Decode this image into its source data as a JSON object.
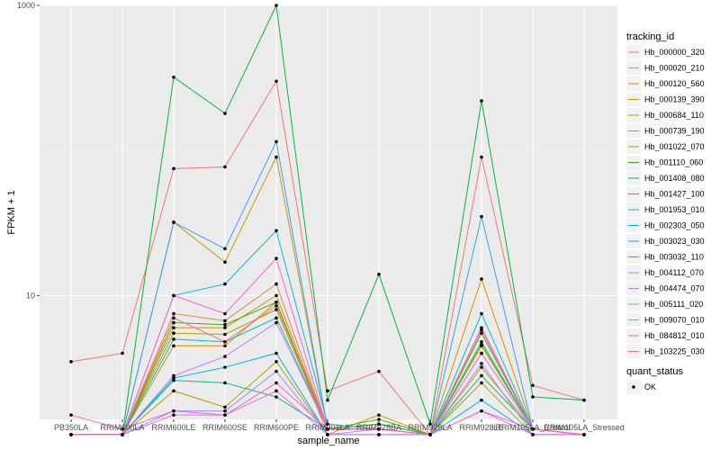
{
  "chart_data": {
    "type": "line",
    "xlabel": "sample_name",
    "ylabel": "FPKM + 1",
    "y_scale": "log10",
    "ylim": [
      1.4,
      1000
    ],
    "y_ticks": [
      {
        "value": 10,
        "label": "10"
      },
      {
        "value": 1000,
        "label": "1000"
      }
    ],
    "categories": [
      "PB350LA",
      "RRIM600LA",
      "RRIM600LE",
      "RRIM600SE",
      "RRIM600PE",
      "RRIM901LA",
      "RRIM928BA",
      "RRIM928LA",
      "RRIM928LE",
      "RRIM105LA_Control",
      "RRIM105LA_Stressed"
    ],
    "grid": true,
    "legend_title": "tracking_id",
    "legend_position": "right",
    "shape_legend": {
      "title": "quant_status",
      "items": [
        {
          "label": "OK"
        }
      ]
    },
    "series": [
      {
        "name": "Hb_000000_320",
        "color": "#F8766D",
        "values": [
          3.5,
          4.0,
          75,
          77,
          300,
          2.2,
          3.0,
          1.1,
          90,
          2.4,
          1.9
        ]
      },
      {
        "name": "Hb_000020_210",
        "color": "#F07F4E",
        "values": [
          1.1,
          1.1,
          7.5,
          6.7,
          12,
          1.2,
          1.2,
          1.1,
          4.0,
          1.2,
          1.1
        ]
      },
      {
        "name": "Hb_000120_560",
        "color": "#E58700",
        "values": [
          1.1,
          1.1,
          6.0,
          6.0,
          10,
          1.2,
          1.3,
          1.1,
          4.5,
          1.2,
          1.1
        ]
      },
      {
        "name": "Hb_000139_390",
        "color": "#D79000",
        "values": [
          1.1,
          1.1,
          4.5,
          4.5,
          9,
          1.1,
          1.5,
          1.1,
          3.2,
          1.2,
          1.1
        ]
      },
      {
        "name": "Hb_000684_110",
        "color": "#C99800",
        "values": [
          1.1,
          1.1,
          32,
          17,
          90,
          1.2,
          1.2,
          1.1,
          13,
          1.2,
          1.1
        ]
      },
      {
        "name": "Hb_000739_190",
        "color": "#B79F00",
        "values": [
          1.1,
          1.1,
          2.2,
          1.7,
          3.5,
          1.1,
          1.1,
          1.1,
          2.5,
          1.1,
          1.1
        ]
      },
      {
        "name": "Hb_001022_070",
        "color": "#A3A500",
        "values": [
          1.1,
          1.1,
          5.5,
          5.4,
          8,
          1.2,
          1.3,
          1.1,
          4.6,
          1.2,
          1.1
        ]
      },
      {
        "name": "Hb_001110_060",
        "color": "#39B600",
        "values": [
          1.1,
          1.1,
          6.5,
          6.3,
          9,
          1.2,
          1.4,
          1.1,
          5.5,
          1.2,
          1.1
        ]
      },
      {
        "name": "Hb_001408_080",
        "color": "#00BA38",
        "values": [
          1.1,
          1.1,
          320,
          180,
          1000,
          1.9,
          14,
          1.3,
          220,
          2.0,
          1.9
        ]
      },
      {
        "name": "Hb_001427_100",
        "color": "#00BF7D",
        "values": [
          1.1,
          1.1,
          2.6,
          2.5,
          2.0,
          1.2,
          1.3,
          1.1,
          2.8,
          1.2,
          1.1
        ]
      },
      {
        "name": "Hb_001953_010",
        "color": "#00C0AF",
        "values": [
          1.1,
          1.1,
          5.0,
          4.8,
          7,
          1.2,
          1.2,
          1.1,
          4.8,
          1.2,
          1.1
        ]
      },
      {
        "name": "Hb_002303_050",
        "color": "#00BCD8",
        "values": [
          1.1,
          1.1,
          10,
          12,
          28,
          1.3,
          1.2,
          1.1,
          7.5,
          1.2,
          1.1
        ]
      },
      {
        "name": "Hb_003023_030",
        "color": "#00B0F6",
        "values": [
          1.1,
          1.1,
          2.7,
          3.2,
          4.0,
          1.1,
          1.1,
          1.1,
          1.9,
          1.1,
          1.1
        ]
      },
      {
        "name": "Hb_003032_110",
        "color": "#35A2FF",
        "values": [
          1.1,
          1.1,
          32,
          21,
          115,
          1.2,
          1.2,
          1.1,
          35,
          1.2,
          1.1
        ]
      },
      {
        "name": "Hb_004112_070",
        "color": "#9590FF",
        "values": [
          1.1,
          1.1,
          1.6,
          1.6,
          3.0,
          1.1,
          1.2,
          1.1,
          3.4,
          1.1,
          1.1
        ]
      },
      {
        "name": "Hb_004474_070",
        "color": "#C77CFF",
        "values": [
          1.1,
          1.1,
          2.8,
          3.8,
          6.5,
          1.2,
          1.2,
          1.1,
          4.0,
          1.2,
          1.1
        ]
      },
      {
        "name": "Hb_005111_020",
        "color": "#E76BF3",
        "values": [
          1.1,
          1.1,
          1.5,
          1.5,
          2.2,
          1.1,
          1.1,
          1.1,
          1.6,
          1.1,
          1.1
        ]
      },
      {
        "name": "Hb_009070_010",
        "color": "#FA62DB",
        "values": [
          1.1,
          1.1,
          10,
          7.5,
          18,
          1.2,
          1.2,
          1.1,
          5.8,
          1.2,
          1.1
        ]
      },
      {
        "name": "Hb_084812_010",
        "color": "#FF62BC",
        "values": [
          1.5,
          1.2,
          1.6,
          1.5,
          2.5,
          1.2,
          1.2,
          1.1,
          1.6,
          1.2,
          1.1
        ]
      },
      {
        "name": "Hb_103225_030",
        "color": "#FF6C90",
        "values": [
          1.1,
          1.1,
          7.0,
          4.8,
          8.5,
          1.2,
          1.2,
          1.1,
          6.0,
          1.2,
          1.1
        ]
      }
    ]
  }
}
